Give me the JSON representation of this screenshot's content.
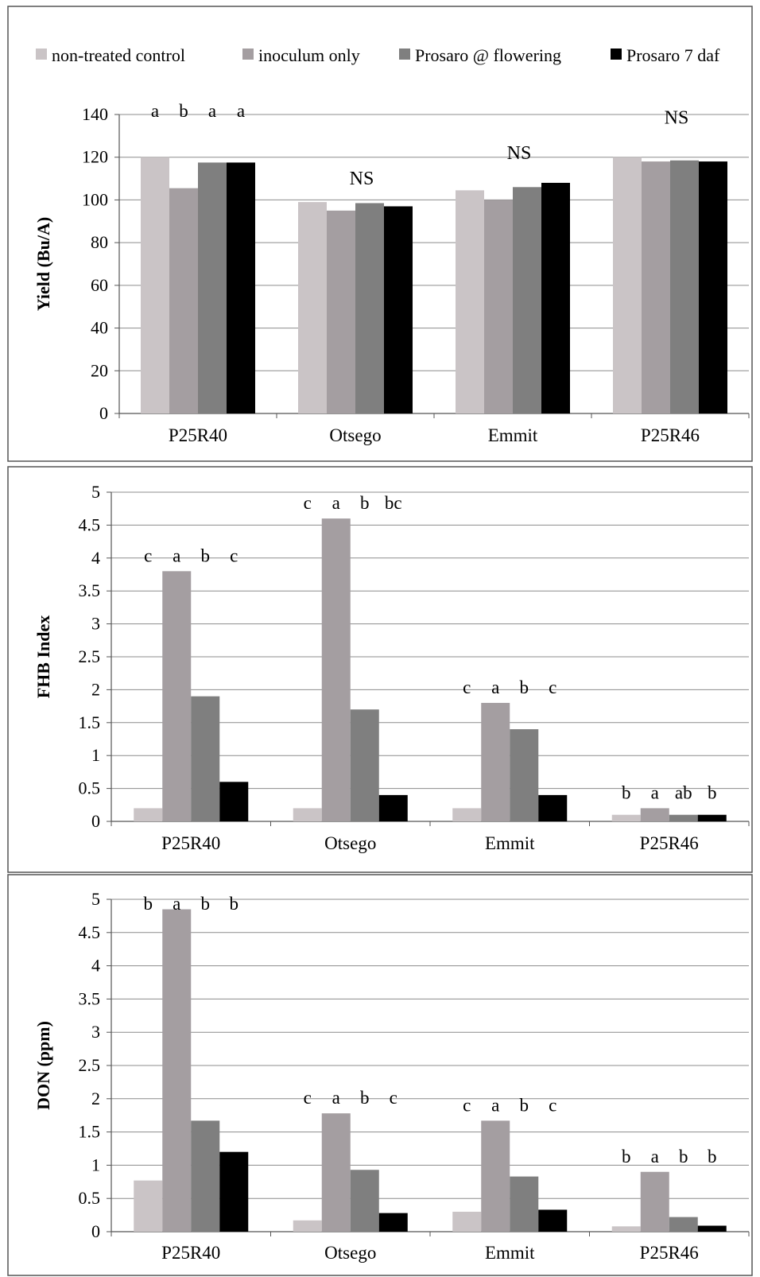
{
  "legend": [
    {
      "label": "non-treated control",
      "color": "#cac4c6"
    },
    {
      "label": "inoculum only",
      "color": "#a49ea1"
    },
    {
      "label": "Prosaro @ flowering",
      "color": "#7f7f7f"
    },
    {
      "label": "Prosaro 7 daf",
      "color": "#000000"
    }
  ],
  "chart_data": [
    {
      "type": "bar",
      "categories": [
        "P25R40",
        "Otsego",
        "Emmit",
        "P25R46"
      ],
      "series": [
        {
          "name": "non-treated control",
          "values": [
            120,
            99,
            104.5,
            120
          ]
        },
        {
          "name": "inoculum only",
          "values": [
            105.5,
            95,
            100,
            118
          ]
        },
        {
          "name": "Prosaro @ flowering",
          "values": [
            117.5,
            98.5,
            106,
            118.5
          ]
        },
        {
          "name": "Prosaro 7 daf",
          "values": [
            117.5,
            97,
            108,
            118
          ]
        }
      ],
      "ylabel": "Yield (Bu/A)",
      "ylim": [
        0,
        140
      ],
      "yticks": [
        0,
        20,
        40,
        60,
        80,
        100,
        120,
        140
      ],
      "grid": true,
      "legend_position": "top",
      "annotations": [
        {
          "category": "P25R40",
          "labels": [
            "a",
            "b",
            "a",
            "a"
          ]
        },
        {
          "category": "Otsego",
          "text": "NS"
        },
        {
          "category": "Emmit",
          "text": "NS"
        },
        {
          "category": "P25R46",
          "text": "NS"
        }
      ]
    },
    {
      "type": "bar",
      "categories": [
        "P25R40",
        "Otsego",
        "Emmit",
        "P25R46"
      ],
      "series": [
        {
          "name": "non-treated control",
          "values": [
            0.2,
            0.2,
            0.2,
            0.1
          ]
        },
        {
          "name": "inoculum only",
          "values": [
            3.8,
            4.6,
            1.8,
            0.2
          ]
        },
        {
          "name": "Prosaro @ flowering",
          "values": [
            1.9,
            1.7,
            1.4,
            0.1
          ]
        },
        {
          "name": "Prosaro 7 daf",
          "values": [
            0.6,
            0.4,
            0.4,
            0.1
          ]
        }
      ],
      "ylabel": "FHB Index",
      "ylim": [
        0,
        5
      ],
      "yticks": [
        "0",
        "0.5",
        "1",
        "1.5",
        "2",
        "2.5",
        "3",
        "3.5",
        "4",
        "4.5",
        "5"
      ],
      "grid": true,
      "annotations": [
        {
          "category": "P25R40",
          "labels": [
            "c",
            "a",
            "b",
            "c"
          ]
        },
        {
          "category": "Otsego",
          "labels": [
            "c",
            "a",
            "b",
            "bc"
          ]
        },
        {
          "category": "Emmit",
          "labels": [
            "c",
            "a",
            "b",
            "c"
          ]
        },
        {
          "category": "P25R46",
          "labels": [
            "b",
            "a",
            "ab",
            "b"
          ]
        }
      ]
    },
    {
      "type": "bar",
      "categories": [
        "P25R40",
        "Otsego",
        "Emmit",
        "P25R46"
      ],
      "series": [
        {
          "name": "non-treated control",
          "values": [
            0.77,
            0.17,
            0.3,
            0.08
          ]
        },
        {
          "name": "inoculum only",
          "values": [
            4.85,
            1.78,
            1.67,
            0.9
          ]
        },
        {
          "name": "Prosaro @ flowering",
          "values": [
            1.67,
            0.93,
            0.83,
            0.22
          ]
        },
        {
          "name": "Prosaro 7 daf",
          "values": [
            1.2,
            0.28,
            0.33,
            0.09
          ]
        }
      ],
      "ylabel": "DON (ppm)",
      "ylim": [
        0,
        5
      ],
      "yticks": [
        "0",
        "0.5",
        "1",
        "1.5",
        "2",
        "2.5",
        "3",
        "3.5",
        "4",
        "4.5",
        "5"
      ],
      "grid": true,
      "annotations": [
        {
          "category": "P25R40",
          "labels": [
            "b",
            "a",
            "b",
            "b"
          ]
        },
        {
          "category": "Otsego",
          "labels": [
            "c",
            "a",
            "b",
            "c"
          ]
        },
        {
          "category": "Emmit",
          "labels": [
            "c",
            "a",
            "b",
            "c"
          ]
        },
        {
          "category": "P25R46",
          "labels": [
            "b",
            "a",
            "b",
            "b"
          ]
        }
      ]
    }
  ]
}
